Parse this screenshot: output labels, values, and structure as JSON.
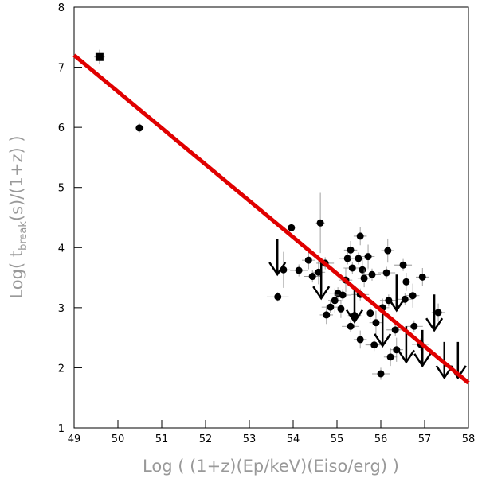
{
  "chart_data": {
    "type": "scatter",
    "xlabel": "Log ( (1+z)(Ep/keV)(Eiso/erg) )",
    "ylabel": {
      "text": "Log( t",
      "sub": "break",
      "tail": "(s)/(1+z) )"
    },
    "xlim": [
      49,
      58
    ],
    "xticks": [
      49,
      50,
      51,
      52,
      53,
      54,
      55,
      56,
      57,
      58
    ],
    "ylim": [
      1,
      8
    ],
    "yticks": [
      1,
      2,
      3,
      4,
      5,
      6,
      7,
      8
    ],
    "series": [
      {
        "marker": "square",
        "color": "#000000",
        "x": [
          49.58
        ],
        "values": [
          7.17
        ],
        "xerr": [
          0.12
        ],
        "yerr": [
          0.12
        ]
      },
      {
        "marker": "circle",
        "color": "#000000",
        "x": [
          50.49,
          53.96,
          53.78,
          53.65,
          54.13,
          54.35,
          54.62,
          54.44,
          54.58,
          54.73,
          54.76,
          54.85,
          54.95,
          55.02,
          55.09,
          55.13,
          55.2,
          55.24,
          55.31,
          55.35,
          55.4,
          55.31,
          55.53,
          55.49,
          55.58,
          55.53,
          55.62,
          55.76,
          55.71,
          55.8,
          55.53,
          55.85,
          55.89,
          56.0,
          56.04,
          56.13,
          56.16,
          56.18,
          56.22,
          56.33,
          56.36,
          56.51,
          56.58,
          56.55,
          56.73,
          56.76,
          56.95,
          56.91,
          57.31
        ],
        "values": [
          5.99,
          4.33,
          3.63,
          3.18,
          3.62,
          3.79,
          4.41,
          3.52,
          3.59,
          3.74,
          2.88,
          3.01,
          3.12,
          3.24,
          2.98,
          3.21,
          3.46,
          3.82,
          3.96,
          3.66,
          2.87,
          2.69,
          4.19,
          3.82,
          3.63,
          3.22,
          3.49,
          2.91,
          3.85,
          3.55,
          2.47,
          2.38,
          2.75,
          1.9,
          3.0,
          3.58,
          3.95,
          3.12,
          2.18,
          2.63,
          2.3,
          3.71,
          3.43,
          3.14,
          3.2,
          2.69,
          3.51,
          2.39,
          2.92
        ],
        "xerr": [
          0.1,
          0.05,
          0.15,
          0.25,
          0.2,
          0.15,
          0.1,
          0.2,
          0.15,
          0.2,
          0.15,
          0.2,
          0.15,
          0.2,
          0.15,
          0.2,
          0.15,
          0.2,
          0.15,
          0.2,
          0.15,
          0.2,
          0.15,
          0.2,
          0.15,
          0.2,
          0.15,
          0.2,
          0.15,
          0.2,
          0.15,
          0.2,
          0.15,
          0.2,
          0.15,
          0.2,
          0.15,
          0.2,
          0.15,
          0.2,
          0.15,
          0.2,
          0.15,
          0.2,
          0.15,
          0.2,
          0.15,
          0.2,
          0.15
        ],
        "yerr": [
          0.08,
          0.05,
          0.3,
          0.08,
          0.1,
          0.15,
          0.5,
          0.1,
          0.2,
          0.1,
          0.15,
          0.1,
          0.2,
          0.1,
          0.15,
          0.1,
          0.2,
          0.1,
          0.15,
          0.1,
          0.2,
          0.1,
          0.15,
          0.1,
          0.2,
          0.1,
          0.15,
          0.1,
          0.2,
          0.1,
          0.15,
          0.1,
          0.2,
          0.1,
          0.15,
          0.1,
          0.2,
          0.1,
          0.15,
          0.1,
          0.2,
          0.1,
          0.15,
          0.1,
          0.2,
          0.1,
          0.15,
          0.1,
          0.15
        ]
      },
      {
        "marker": "arrow",
        "color": "#000000",
        "x": [
          53.64,
          54.64,
          55.4,
          56.04,
          56.36,
          56.58,
          56.95,
          57.22,
          57.45,
          57.76
        ],
        "values": [
          4.15,
          3.75,
          3.36,
          2.96,
          3.55,
          2.69,
          2.63,
          3.22,
          2.43,
          2.43
        ]
      },
      {
        "marker": "line",
        "color": "#e00000",
        "x": [
          49,
          58
        ],
        "values": [
          7.2,
          1.75
        ]
      }
    ]
  }
}
